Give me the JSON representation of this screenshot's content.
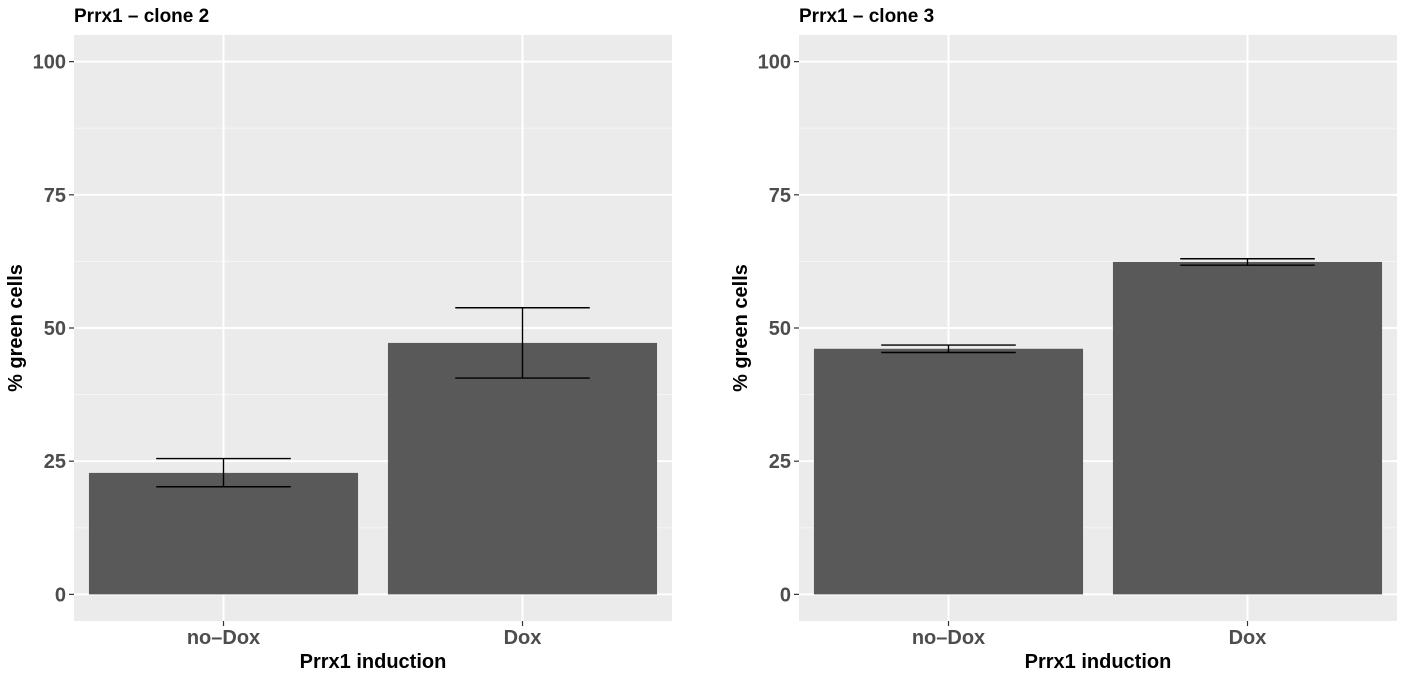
{
  "colors": {
    "panel_background": "#ebebeb",
    "grid_major": "#ffffff",
    "grid_minor": "#f5f5f5",
    "bar_fill": "#595959",
    "error_bar": "#000000",
    "tick_label": "#4d4d4d",
    "text": "#000000"
  },
  "chart_data": [
    {
      "type": "bar",
      "title": "Prrx1 – clone 2",
      "xlabel": "Prrx1 induction",
      "ylabel": "% green cells",
      "categories": [
        "no–Dox",
        "Dox"
      ],
      "values": [
        22.8,
        47.2
      ],
      "error_low": [
        20.2,
        40.6
      ],
      "error_high": [
        25.5,
        53.8
      ],
      "ylim": [
        -5,
        105
      ],
      "yticks": [
        0,
        25,
        50,
        75,
        100
      ],
      "ytick_labels": [
        "0",
        "25",
        "50",
        "75",
        "100"
      ],
      "grid": true,
      "legend": "none"
    },
    {
      "type": "bar",
      "title": "Prrx1 – clone 3",
      "xlabel": "Prrx1 induction",
      "ylabel": "% green cells",
      "categories": [
        "no–Dox",
        "Dox"
      ],
      "values": [
        46.1,
        62.4
      ],
      "error_low": [
        45.4,
        61.8
      ],
      "error_high": [
        46.8,
        63.0
      ],
      "ylim": [
        -5,
        105
      ],
      "yticks": [
        0,
        25,
        50,
        75,
        100
      ],
      "ytick_labels": [
        "0",
        "25",
        "50",
        "75",
        "100"
      ],
      "grid": true,
      "legend": "none"
    }
  ]
}
